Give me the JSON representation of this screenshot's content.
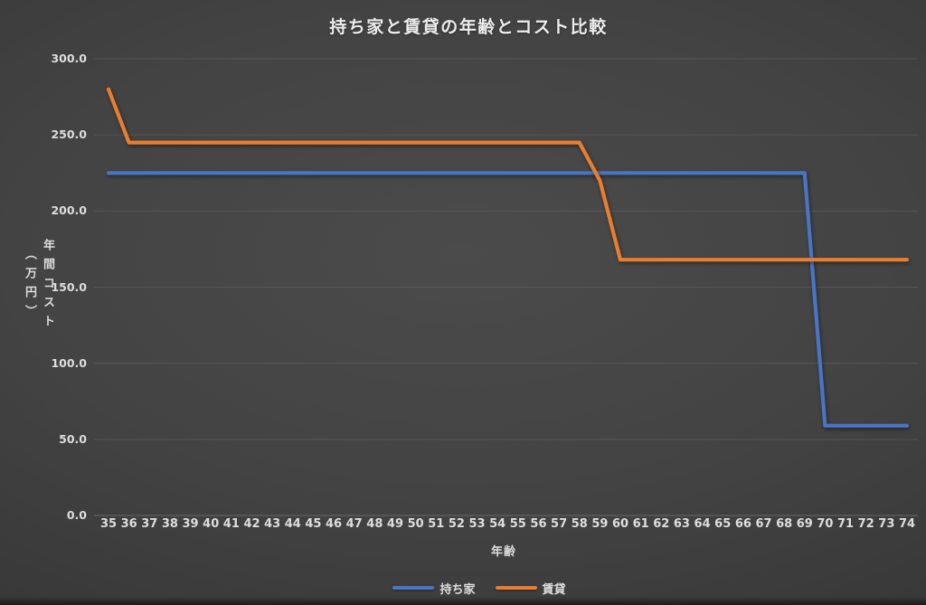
{
  "chart_data": {
    "type": "line",
    "title": "持ち家と賃貸の年齢とコスト比較",
    "xlabel": "年齢",
    "ylabel": "年間コスト（万円）",
    "ylabel_line1": "年間コスト",
    "ylabel_line2": "（万円）",
    "x": [
      35,
      36,
      37,
      38,
      39,
      40,
      41,
      42,
      43,
      44,
      45,
      46,
      47,
      48,
      49,
      50,
      51,
      52,
      53,
      54,
      55,
      56,
      57,
      58,
      59,
      60,
      61,
      62,
      63,
      64,
      65,
      66,
      67,
      68,
      69,
      70,
      71,
      72,
      73,
      74
    ],
    "series": [
      {
        "name": "持ち家",
        "color": "#4A74C4",
        "values": [
          225,
          225,
          225,
          225,
          225,
          225,
          225,
          225,
          225,
          225,
          225,
          225,
          225,
          225,
          225,
          225,
          225,
          225,
          225,
          225,
          225,
          225,
          225,
          225,
          225,
          225,
          225,
          225,
          225,
          225,
          225,
          225,
          225,
          225,
          225,
          59,
          59,
          59,
          59,
          59
        ]
      },
      {
        "name": "賃貸",
        "color": "#E87E30",
        "values": [
          280,
          245,
          245,
          245,
          245,
          245,
          245,
          245,
          245,
          245,
          245,
          245,
          245,
          245,
          245,
          245,
          245,
          245,
          245,
          245,
          245,
          245,
          245,
          245,
          220,
          168,
          168,
          168,
          168,
          168,
          168,
          168,
          168,
          168,
          168,
          168,
          168,
          168,
          168,
          168
        ]
      }
    ],
    "ylim": [
      0,
      300
    ],
    "ytick_values": [
      0,
      50,
      100,
      150,
      200,
      250,
      300
    ],
    "ytick_labels": [
      "0.0",
      "50.0",
      "100.0",
      "150.0",
      "200.0",
      "250.0",
      "300.0"
    ],
    "grid": true,
    "legend_position": "bottom"
  },
  "colors": {
    "background_center": "#4b4b4b",
    "background_edge": "#262626",
    "gridline": "rgba(255,255,255,0.10)",
    "axis_line": "#616161",
    "text": "#dedede",
    "series_owned_home": "#4A74C4",
    "series_rent": "#E87E30"
  }
}
